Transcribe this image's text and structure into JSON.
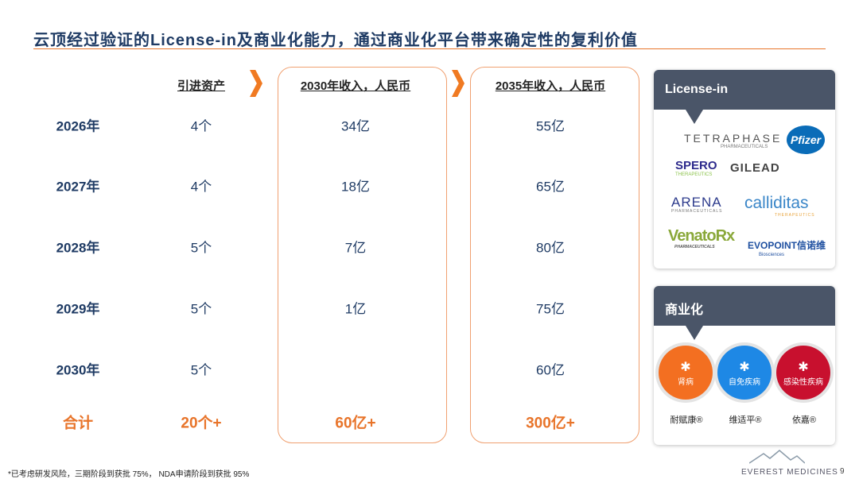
{
  "title": "云顶经过验证的License-in及商业化能力，通过商业化平台带来确定性的复利价值",
  "headers": {
    "assets": "引进资产",
    "rev2030": "2030年收入，人民币",
    "rev2035": "2035年收入，人民币"
  },
  "rows": [
    {
      "year": "2026年",
      "assets": "4个",
      "rev2030": "34亿",
      "rev2035": "55亿"
    },
    {
      "year": "2027年",
      "assets": "4个",
      "rev2030": "18亿",
      "rev2035": "65亿"
    },
    {
      "year": "2028年",
      "assets": "5个",
      "rev2030": "7亿",
      "rev2035": "80亿"
    },
    {
      "year": "2029年",
      "assets": "5个",
      "rev2030": "1亿",
      "rev2035": "75亿"
    },
    {
      "year": "2030年",
      "assets": "5个",
      "rev2030": "",
      "rev2035": "60亿"
    }
  ],
  "total": {
    "label": "合计",
    "assets": "20个+",
    "rev2030": "60亿+",
    "rev2035": "300亿+"
  },
  "license_panel": {
    "title": "License-in",
    "logos": [
      "TETRAPHASE",
      "PHARMACEUTICALS",
      "Pfizer",
      "SPERO",
      "THERAPEUTICS",
      "GILEAD",
      "ARENA",
      "PHARMACEUTICALS",
      "calliditas",
      "THERAPEUTICS",
      "VenatoRx",
      "PHARMACEUTICALS",
      "EVOPOINT信诺维",
      "Biosciences"
    ]
  },
  "commercial_panel": {
    "title": "商业化",
    "areas": [
      {
        "label": "肾病",
        "brand": "耐赋康®",
        "color": "#f36f21"
      },
      {
        "label": "自免疾病",
        "brand": "维适平®",
        "color": "#1e88e5"
      },
      {
        "label": "感染性疾病",
        "brand": "依嘉®",
        "color": "#c8102e"
      }
    ]
  },
  "footnote": "*已考虑研发风险，三期阶段到获批 75%， NDA申请阶段到获批 95%",
  "page_number": "9",
  "company_logo": "EVEREST MEDICINES"
}
